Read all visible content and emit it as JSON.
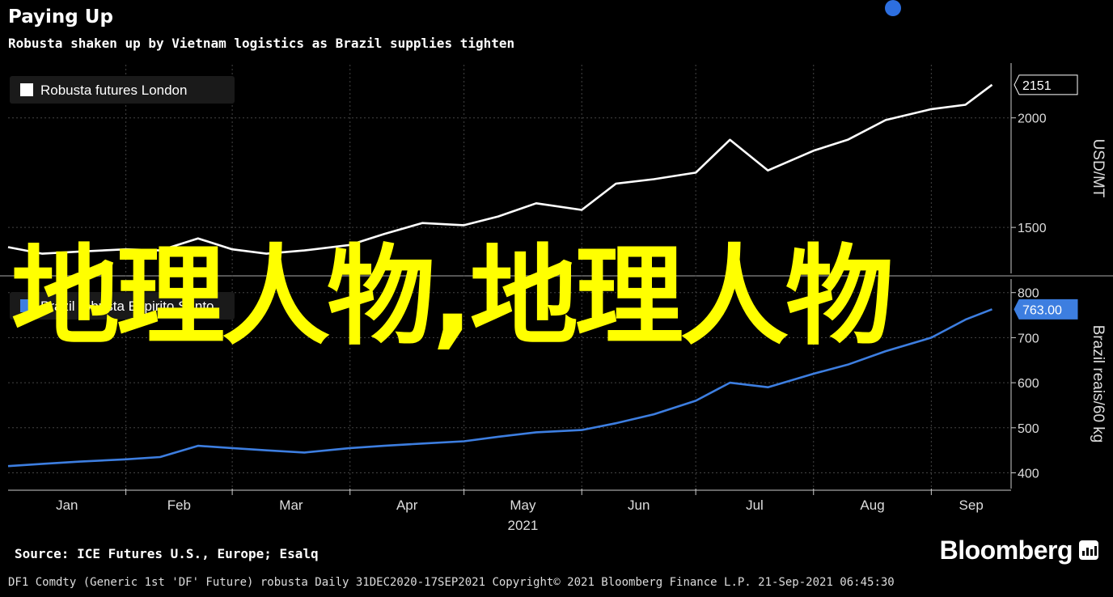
{
  "header": {
    "title": "Paying Up",
    "subtitle": "Robusta shaken up by Vietnam logistics as Brazil supplies tighten"
  },
  "overlay_text": "地理人物,地理人物",
  "source": "Source: ICE Futures U.S., Europe; Esalq",
  "brand": "Bloomberg",
  "footer": "DF1 Comdty (Generic 1st 'DF' Future) robusta  Daily 31DEC2020-17SEP2021  Copyright© 2021 Bloomberg Finance L.P.  21-Sep-2021 06:45:30",
  "chart_data": [
    {
      "type": "line",
      "title": "",
      "legend": "top-left",
      "series": [
        {
          "name": "Robusta futures London",
          "color": "#ffffff",
          "x": [
            "2021-01-01",
            "2021-01-10",
            "2021-01-20",
            "2021-02-01",
            "2021-02-10",
            "2021-02-20",
            "2021-03-01",
            "2021-03-10",
            "2021-03-20",
            "2021-04-01",
            "2021-04-10",
            "2021-04-20",
            "2021-05-01",
            "2021-05-10",
            "2021-05-20",
            "2021-06-01",
            "2021-06-10",
            "2021-06-20",
            "2021-07-01",
            "2021-07-10",
            "2021-07-20",
            "2021-08-01",
            "2021-08-10",
            "2021-08-20",
            "2021-09-01",
            "2021-09-10",
            "2021-09-17"
          ],
          "values": [
            1410,
            1380,
            1390,
            1400,
            1395,
            1450,
            1400,
            1380,
            1395,
            1420,
            1470,
            1520,
            1510,
            1550,
            1610,
            1580,
            1700,
            1720,
            1750,
            1900,
            1760,
            1850,
            1900,
            1990,
            2040,
            2060,
            2151
          ],
          "last_label": "2151",
          "ylabel": "USD/MT",
          "ticks": [
            1500,
            2000
          ]
        },
        {
          "name": "Brazil robusta Espirito Santo",
          "color": "#3d7ee0",
          "x": [
            "2021-01-01",
            "2021-01-10",
            "2021-01-20",
            "2021-02-01",
            "2021-02-10",
            "2021-02-20",
            "2021-03-01",
            "2021-03-10",
            "2021-03-20",
            "2021-04-01",
            "2021-04-10",
            "2021-04-20",
            "2021-05-01",
            "2021-05-10",
            "2021-05-20",
            "2021-06-01",
            "2021-06-10",
            "2021-06-20",
            "2021-07-01",
            "2021-07-10",
            "2021-07-20",
            "2021-08-01",
            "2021-08-10",
            "2021-08-20",
            "2021-09-01",
            "2021-09-10",
            "2021-09-17"
          ],
          "values": [
            415,
            420,
            425,
            430,
            435,
            460,
            455,
            450,
            445,
            455,
            460,
            465,
            470,
            480,
            490,
            495,
            510,
            530,
            560,
            600,
            590,
            620,
            640,
            670,
            700,
            740,
            763
          ],
          "last_label": "763.00",
          "ylabel": "Brazil reais/60 kg",
          "ticks": [
            400,
            500,
            600,
            700,
            800
          ]
        }
      ],
      "x_ticks": [
        "Jan",
        "Feb",
        "Mar",
        "Apr",
        "May",
        "Jun",
        "Jul",
        "Aug",
        "Sep"
      ],
      "x_year": "2021",
      "grid": true
    }
  ]
}
